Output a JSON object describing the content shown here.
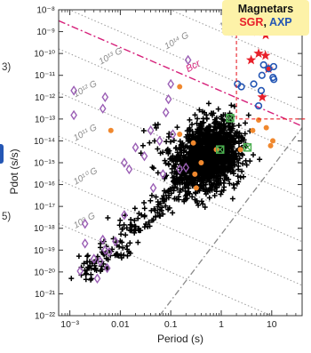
{
  "chart_data": {
    "type": "scatter",
    "xlabel": "Period (s)",
    "ylabel": "Pdot (s/s)",
    "xscale": "log",
    "yscale": "log",
    "xlim": [
      0.0006,
      40
    ],
    "ylim": [
      1e-22,
      1e-08
    ],
    "x_ticks": [
      "10⁻³",
      "0.01",
      "0.1",
      "1",
      "10"
    ],
    "x_tick_values": [
      0.001,
      0.01,
      0.1,
      1,
      10
    ],
    "y_ticks": [
      "10⁻⁸",
      "10⁻⁹",
      "10⁻¹⁰",
      "10⁻¹¹",
      "10⁻¹²",
      "10⁻¹³",
      "10⁻¹⁴",
      "10⁻¹⁵",
      "10⁻¹⁶",
      "10⁻¹⁷",
      "10⁻¹⁸",
      "10⁻¹⁹",
      "10⁻²⁰",
      "10⁻²¹",
      "10⁻²²"
    ],
    "y_tick_exponents": [
      -8,
      -9,
      -10,
      -11,
      -12,
      -13,
      -14,
      -15,
      -16,
      -17,
      -18,
      -19,
      -20,
      -21,
      -22
    ],
    "field_lines": [
      {
        "label": "10¹⁵ G",
        "B_exp": 15
      },
      {
        "label": "10¹⁴ G",
        "B_exp": 14
      },
      {
        "label": "10¹³ G",
        "B_exp": 13
      },
      {
        "label": "10¹² G",
        "B_exp": 12
      },
      {
        "label": "10¹¹ G",
        "B_exp": 11
      },
      {
        "label": "10¹⁰ G",
        "B_exp": 10
      },
      {
        "label": "10⁹ G",
        "B_exp": 9
      }
    ],
    "bcr_label": "Bcr",
    "colors": {
      "pulsar": "#000000",
      "binary": "#9b5fb5",
      "orange": "#f0882e",
      "sgr": "#e8202a",
      "axp": "#2456b4",
      "green": "#4caf50",
      "field": "#999999",
      "bcr": "#d6207a",
      "deathline": "#8a8a8a"
    },
    "magnetars_sgr": [
      [
        3.9,
        5e-11
      ],
      [
        7.5,
        8e-11
      ],
      [
        5.5,
        1e-10
      ],
      [
        8.6,
        2e-11
      ],
      [
        7.6,
        7e-10
      ],
      [
        5.2,
        1e-09
      ],
      [
        6.5,
        1e-12
      ]
    ],
    "magnetars_axp": [
      [
        11,
        6.5e-12
      ],
      [
        8.7,
        2e-11
      ],
      [
        10.6,
        8e-12
      ],
      [
        6.9,
        3e-11
      ],
      [
        2.5,
        3e-12
      ],
      [
        5.5,
        4e-13
      ],
      [
        2.1,
        4e-12
      ],
      [
        6.4,
        1e-11
      ],
      [
        10.9,
        2.5e-11
      ],
      [
        4.4,
        4e-12
      ],
      [
        6.2,
        2e-12
      ]
    ],
    "binary_pulsars": [
      [
        0.0016,
        1.1e-20
      ],
      [
        0.002,
        2e-19
      ],
      [
        0.003,
        4e-20
      ],
      [
        0.0045,
        3e-19
      ],
      [
        0.005,
        1e-19
      ],
      [
        0.006,
        8e-20
      ],
      [
        0.0035,
        5e-21
      ],
      [
        0.004,
        3e-20
      ],
      [
        0.008,
        2.5e-19
      ],
      [
        0.0055,
        1.5e-20
      ],
      [
        0.002,
        1.6e-18
      ],
      [
        0.0012,
        2e-12
      ],
      [
        0.0012,
        1.5e-13
      ],
      [
        0.005,
        1e-12
      ],
      [
        0.0045,
        3e-13
      ],
      [
        0.09,
        8e-13
      ],
      [
        0.08,
        2e-13
      ],
      [
        0.1,
        4e-12
      ],
      [
        0.22,
        5e-11
      ],
      [
        0.03,
        2e-15
      ],
      [
        0.02,
        5e-15
      ],
      [
        0.06,
        1e-14
      ],
      [
        0.04,
        3e-14
      ],
      [
        0.012,
        1e-15
      ],
      [
        0.015,
        5e-16
      ],
      [
        0.07,
        3e-16
      ],
      [
        0.15,
        5e-16
      ],
      [
        0.045,
        7e-17
      ],
      [
        0.012,
        4e-18
      ],
      [
        0.2,
        6e-16
      ],
      [
        0.11,
        2e-14
      ]
    ],
    "orange_points": [
      [
        0.0065,
        3e-14
      ],
      [
        0.15,
        3e-12
      ],
      [
        0.15,
        2e-14
      ],
      [
        0.28,
        8e-15
      ],
      [
        0.3,
        3e-16
      ],
      [
        0.4,
        1e-15
      ],
      [
        0.32,
        7e-17
      ],
      [
        0.8,
        4e-15
      ],
      [
        4.2,
        3e-14
      ],
      [
        7.8,
        4e-14
      ],
      [
        9.5,
        6e-15
      ],
      [
        5.5,
        9e-14
      ],
      [
        2.4,
        4e-15
      ],
      [
        10.5,
        1e-14
      ]
    ],
    "green_points": [
      [
        1.5,
        1.1e-13
      ],
      [
        0.95,
        4e-15
      ],
      [
        3.3,
        5e-15
      ]
    ]
  },
  "legend": {
    "title": "Magnetars",
    "sgr": "SGR",
    "separator": ",",
    "axp": "AXP"
  },
  "left_fragments": {
    "a": "3)",
    "b": ")",
    "c": "5)"
  }
}
